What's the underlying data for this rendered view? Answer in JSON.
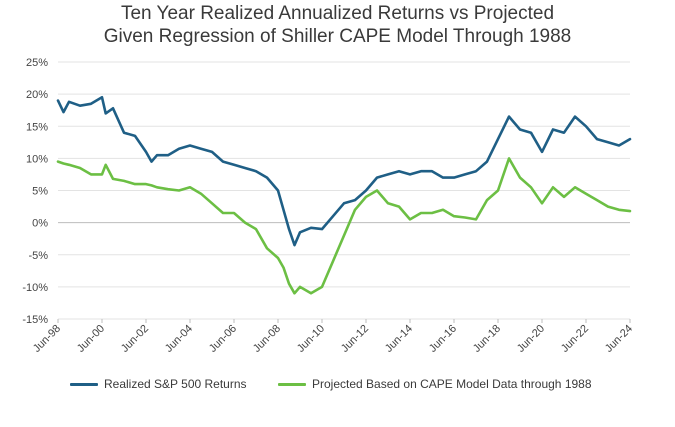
{
  "chart_data": {
    "type": "line",
    "title": "Ten Year Realized Annualized Returns vs Projected",
    "subtitle": "Given Regression of Shiller CAPE Model Through 1988",
    "xlabel": "",
    "ylabel": "",
    "x_ticks": [
      "Jun-98",
      "Jun-00",
      "Jun-02",
      "Jun-04",
      "Jun-06",
      "Jun-08",
      "Jun-10",
      "Jun-12",
      "Jun-14",
      "Jun-16",
      "Jun-18",
      "Jun-20",
      "Jun-22",
      "Jun-24"
    ],
    "y_ticks": [
      "25%",
      "20%",
      "15%",
      "10%",
      "5%",
      "0%",
      "-5%",
      "-10%",
      "-15%"
    ],
    "ylim": [
      -15,
      25
    ],
    "xlim": [
      "Jun-98",
      "Jun-24"
    ],
    "grid": "horizontal",
    "legend_position": "bottom",
    "series": [
      {
        "name": "Realized S&P 500 Returns",
        "color": "#1f5f86",
        "x": [
          "Jun-98",
          "Sep-98",
          "Dec-98",
          "Jun-99",
          "Dec-99",
          "Jun-00",
          "Aug-00",
          "Dec-00",
          "Jun-01",
          "Dec-01",
          "Jun-02",
          "Sep-02",
          "Dec-02",
          "Jun-03",
          "Dec-03",
          "Jun-04",
          "Dec-04",
          "Jun-05",
          "Dec-05",
          "Jun-06",
          "Dec-06",
          "Jun-07",
          "Dec-07",
          "Jun-08",
          "Sep-08",
          "Dec-08",
          "Mar-09",
          "Jun-09",
          "Dec-09",
          "Jun-10",
          "Dec-10",
          "Jun-11",
          "Dec-11",
          "Jun-12",
          "Dec-12",
          "Jun-13",
          "Dec-13",
          "Jun-14",
          "Dec-14",
          "Jun-15",
          "Dec-15",
          "Jun-16",
          "Dec-16",
          "Jun-17",
          "Dec-17",
          "Jun-18",
          "Dec-18",
          "Jun-19",
          "Dec-19",
          "Jun-20",
          "Dec-20",
          "Jun-21",
          "Dec-21",
          "Jun-22",
          "Dec-22",
          "Jun-23",
          "Dec-23",
          "Jun-24"
        ],
        "y": [
          19,
          17.2,
          18.8,
          18.2,
          18.5,
          19.5,
          17,
          17.8,
          14,
          13.5,
          11,
          9.5,
          10.5,
          10.5,
          11.5,
          12,
          11.5,
          11,
          9.5,
          9,
          8.5,
          8,
          7,
          5,
          2,
          -1,
          -3.5,
          -1.5,
          -0.8,
          -1,
          1,
          3,
          3.5,
          5,
          7,
          7.5,
          8,
          7.5,
          8,
          8,
          7,
          7,
          7.5,
          8,
          9.5,
          13,
          16.5,
          14.5,
          14,
          11,
          14.5,
          14,
          16.5,
          15,
          13,
          12.5,
          12,
          13
        ]
      },
      {
        "name": "Projected Based on CAPE Model Data through 1988",
        "color": "#6cbf44",
        "x": [
          "Jun-98",
          "Sep-98",
          "Dec-98",
          "Jun-99",
          "Dec-99",
          "Jun-00",
          "Aug-00",
          "Dec-00",
          "Jun-01",
          "Dec-01",
          "Jun-02",
          "Sep-02",
          "Dec-02",
          "Jun-03",
          "Dec-03",
          "Jun-04",
          "Dec-04",
          "Jun-05",
          "Dec-05",
          "Jun-06",
          "Dec-06",
          "Jun-07",
          "Dec-07",
          "Jun-08",
          "Sep-08",
          "Dec-08",
          "Mar-09",
          "Jun-09",
          "Dec-09",
          "Jun-10",
          "Dec-10",
          "Jun-11",
          "Dec-11",
          "Jun-12",
          "Dec-12",
          "Jun-13",
          "Dec-13",
          "Jun-14",
          "Dec-14",
          "Jun-15",
          "Dec-15",
          "Jun-16",
          "Dec-16",
          "Jun-17",
          "Dec-17",
          "Jun-18",
          "Dec-18",
          "Jun-19",
          "Dec-19",
          "Jun-20",
          "Dec-20",
          "Jun-21",
          "Dec-21",
          "Jun-22",
          "Dec-22",
          "Jun-23",
          "Dec-23",
          "Jun-24"
        ],
        "y": [
          9.5,
          9.2,
          9,
          8.5,
          7.5,
          7.5,
          9,
          6.8,
          6.5,
          6,
          6,
          5.8,
          5.5,
          5.2,
          5,
          5.5,
          4.5,
          3,
          1.5,
          1.5,
          0,
          -1,
          -4,
          -5.5,
          -7,
          -9.5,
          -11,
          -10,
          -11,
          -10,
          -6,
          -2,
          2,
          4,
          5,
          3,
          2.5,
          0.5,
          1.5,
          1.5,
          2,
          1,
          0.8,
          0.5,
          3.5,
          5,
          10,
          7,
          5.5,
          3,
          5.5,
          4,
          5.5,
          4.5,
          3.5,
          2.5,
          2,
          1.8
        ]
      }
    ]
  }
}
